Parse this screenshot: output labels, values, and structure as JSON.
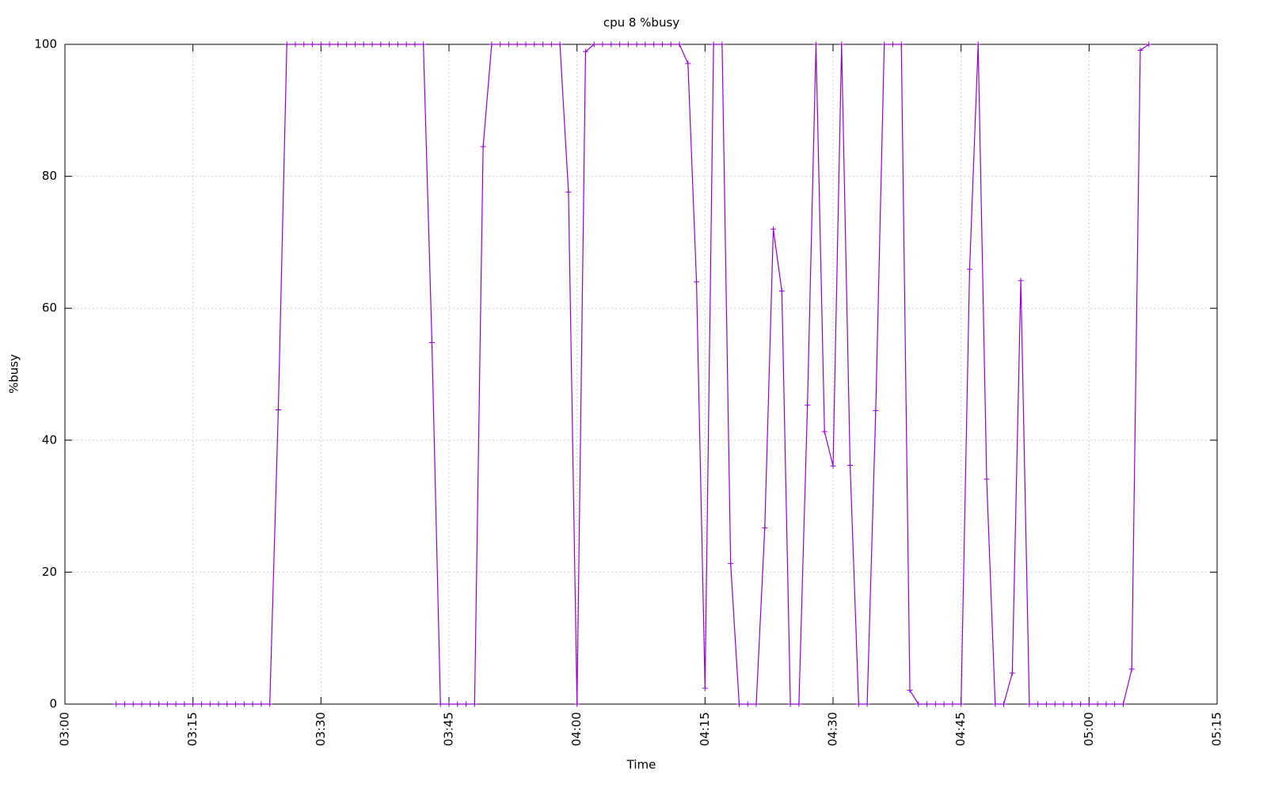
{
  "chart_data": {
    "type": "line",
    "title": "cpu 8 %busy",
    "x_label": "Time",
    "y_label": "%busy",
    "x": [
      "03:06",
      "03:07",
      "03:08",
      "03:09",
      "03:10",
      "03:11",
      "03:12",
      "03:13",
      "03:14",
      "03:15",
      "03:16",
      "03:17",
      "03:18",
      "03:19",
      "03:20",
      "03:21",
      "03:22",
      "03:23",
      "03:24",
      "03:25",
      "03:26",
      "03:27",
      "03:28",
      "03:29",
      "03:30",
      "03:31",
      "03:32",
      "03:33",
      "03:34",
      "03:35",
      "03:36",
      "03:37",
      "03:38",
      "03:39",
      "03:40",
      "03:41",
      "03:42",
      "03:43",
      "03:44",
      "03:45",
      "03:46",
      "03:47",
      "03:48",
      "03:49",
      "03:50",
      "03:51",
      "03:52",
      "03:53",
      "03:54",
      "03:55",
      "03:56",
      "03:57",
      "03:58",
      "03:59",
      "04:00",
      "04:01",
      "04:02",
      "04:03",
      "04:04",
      "04:05",
      "04:06",
      "04:07",
      "04:08",
      "04:09",
      "04:10",
      "04:11",
      "04:12",
      "04:13",
      "04:14",
      "04:15",
      "04:16",
      "04:17",
      "04:18",
      "04:19",
      "04:20",
      "04:21",
      "04:22",
      "04:23",
      "04:24",
      "04:25",
      "04:26",
      "04:27",
      "04:28",
      "04:29",
      "04:30",
      "04:31",
      "04:32",
      "04:33",
      "04:34",
      "04:35",
      "04:36",
      "04:37",
      "04:38",
      "04:39",
      "04:40",
      "04:41",
      "04:42",
      "04:43",
      "04:44",
      "04:45",
      "04:46",
      "04:47",
      "04:48",
      "04:49",
      "04:50",
      "04:51",
      "04:52",
      "04:53",
      "04:54",
      "04:55",
      "04:56",
      "04:57",
      "04:58",
      "04:59",
      "05:00",
      "05:01",
      "05:02",
      "05:03",
      "05:04",
      "05:05",
      "05:06",
      "05:07"
    ],
    "series": [
      {
        "name": "cpu 8 %busy",
        "color": "#9400d3",
        "values": [
          0,
          0,
          0,
          0,
          0,
          0,
          0,
          0,
          0,
          0,
          0,
          0,
          0,
          0,
          0,
          0,
          0,
          0,
          0,
          44.6,
          100,
          100,
          100,
          100,
          100,
          100,
          100,
          100,
          100,
          100,
          100,
          100,
          100,
          100,
          100,
          100,
          100,
          54.8,
          0,
          0,
          0,
          0,
          0,
          84.5,
          100,
          100,
          100,
          100,
          100,
          100,
          100,
          100,
          100,
          77.6,
          0,
          98.9,
          100,
          100,
          100,
          100,
          100,
          100,
          100,
          100,
          100,
          100,
          100,
          97.1,
          64,
          2.4,
          100,
          100,
          21.3,
          0,
          0,
          0,
          26.7,
          72,
          62.6,
          0,
          0,
          45.3,
          100,
          41.3,
          36.1,
          100,
          36.2,
          0,
          0,
          44.5,
          100,
          100,
          100,
          2.1,
          0,
          0,
          0,
          0,
          0,
          0,
          65.9,
          100,
          34.1,
          0,
          0,
          4.7,
          64.2,
          0,
          0,
          0,
          0,
          0,
          0,
          0,
          0,
          0,
          0,
          0,
          0,
          5.3,
          99.1,
          100
        ]
      }
    ],
    "xlim": [
      "03:00",
      "05:15"
    ],
    "xticks": [
      "03:00",
      "03:15",
      "03:30",
      "03:45",
      "04:00",
      "04:15",
      "04:30",
      "04:45",
      "05:00",
      "05:15"
    ],
    "ylim": [
      0,
      100
    ],
    "yticks": [
      0,
      20,
      40,
      60,
      80,
      100
    ],
    "grid": true
  }
}
